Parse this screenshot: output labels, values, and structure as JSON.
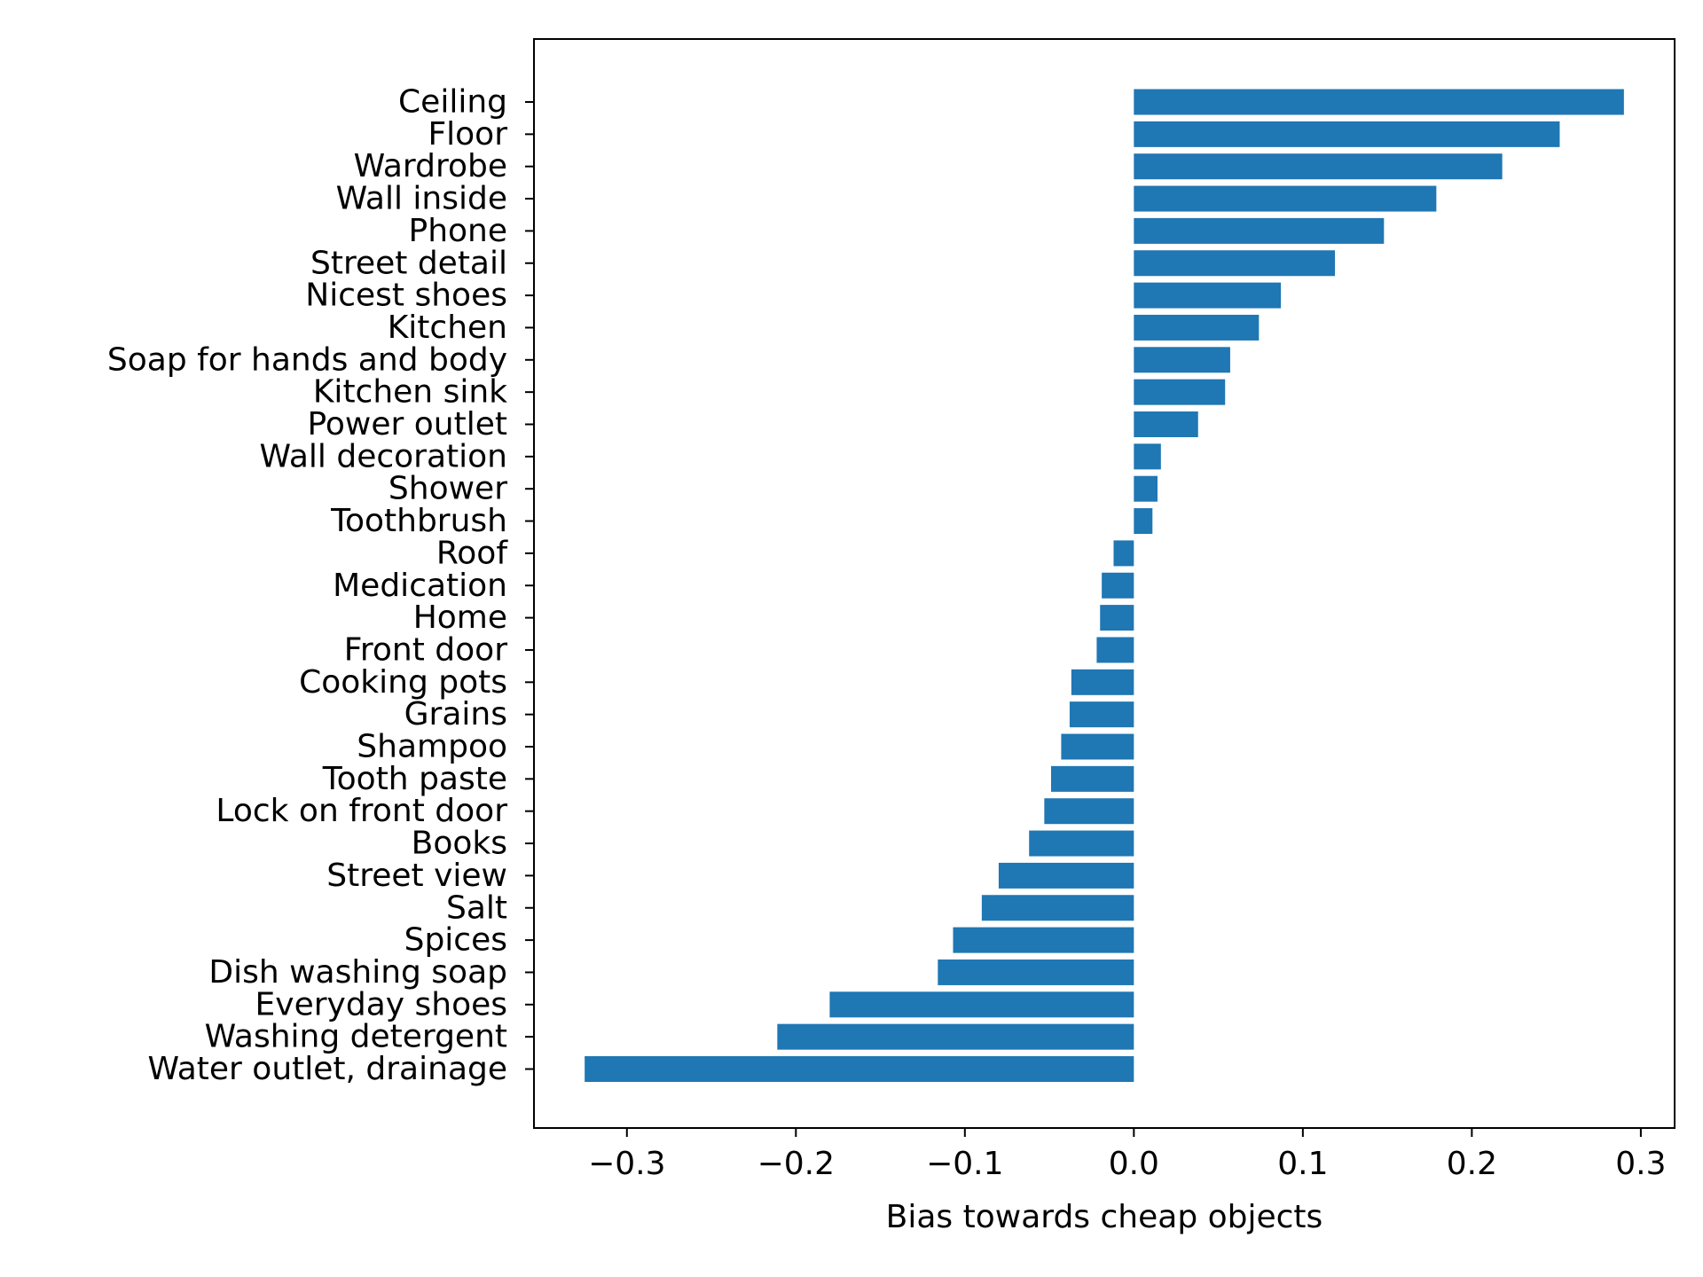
{
  "chart_data": {
    "type": "bar",
    "orientation": "horizontal",
    "xlabel": "Bias towards cheap objects",
    "ylabel": "",
    "xlim": [
      -0.355,
      0.32
    ],
    "xticks": [
      -0.3,
      -0.2,
      -0.1,
      0.0,
      0.1,
      0.2,
      0.3
    ],
    "xtick_labels": [
      "−0.3",
      "−0.2",
      "−0.1",
      "0.0",
      "0.1",
      "0.2",
      "0.3"
    ],
    "grid": false,
    "color": "#1f77b4",
    "categories": [
      "Ceiling",
      "Floor",
      "Wardrobe",
      "Wall inside",
      "Phone",
      "Street detail",
      "Nicest shoes",
      "Kitchen",
      "Soap for hands and body",
      "Kitchen sink",
      "Power outlet",
      "Wall decoration",
      "Shower",
      "Toothbrush",
      "Roof",
      "Medication",
      "Home",
      "Front door",
      "Cooking pots",
      "Grains",
      "Shampoo",
      "Tooth paste",
      "Lock on front door",
      "Books",
      "Street view",
      "Salt",
      "Spices",
      "Dish washing soap",
      "Everyday shoes",
      "Washing detergent",
      "Water outlet, drainage"
    ],
    "values": [
      0.29,
      0.252,
      0.218,
      0.179,
      0.148,
      0.119,
      0.087,
      0.074,
      0.057,
      0.054,
      0.038,
      0.016,
      0.014,
      0.011,
      -0.012,
      -0.019,
      -0.02,
      -0.022,
      -0.037,
      -0.038,
      -0.043,
      -0.049,
      -0.053,
      -0.062,
      -0.08,
      -0.09,
      -0.107,
      -0.116,
      -0.18,
      -0.211,
      -0.325
    ]
  }
}
